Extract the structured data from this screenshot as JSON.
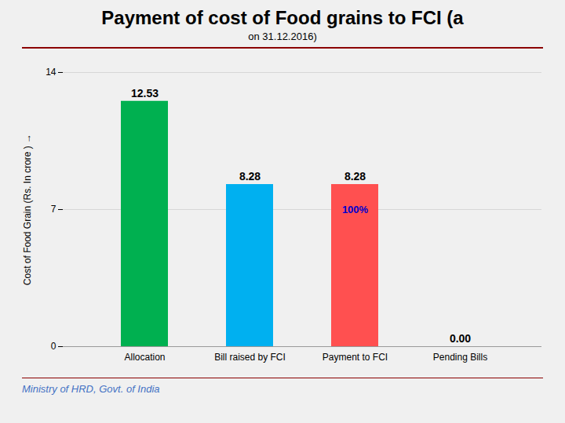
{
  "chart_data": {
    "type": "bar",
    "title": "Payment of cost of Food grains to FCI (a",
    "subtitle": "on 31.12.2016)",
    "categories": [
      "Allocation",
      "Bill raised by FCI",
      "Payment to FCI",
      "Pending Bills"
    ],
    "values": [
      12.53,
      8.28,
      8.28,
      0.0
    ],
    "value_labels": [
      "12.53",
      "8.28",
      "8.28",
      "0.00"
    ],
    "data_labels": true,
    "colors": [
      "#00B050",
      "#00B0F0",
      "#FF5050",
      "#FFFFFF"
    ],
    "ylabel": "Cost of Food Grain (Rs. In crore )",
    "ylim": [
      0,
      14
    ],
    "yticks": [
      0,
      7,
      14
    ],
    "grid": true,
    "annotations": [
      {
        "text": "100%",
        "category": "Payment to FCI",
        "y": 7,
        "color": "#0000CD"
      }
    ],
    "footer": "Ministry of HRD, Govt. of India"
  }
}
